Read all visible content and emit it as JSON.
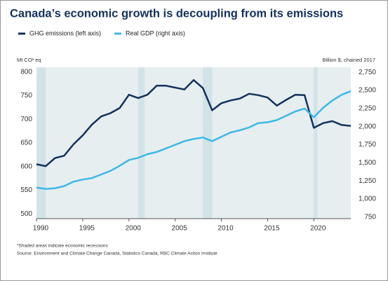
{
  "chart_data": {
    "type": "line",
    "title": "Canada’s economic growth is decoupling from its emissions",
    "y_label": "Mt CO² eq",
    "y2_label": "Billion $, chained 2017",
    "notes": [
      "*Shaded areas indicate economic recessions",
      "Source: Environment and Climate Change Canada, Statistics Canada, RBC Climate Action Institute"
    ],
    "x": [
      1990,
      1991,
      1992,
      1993,
      1994,
      1995,
      1996,
      1997,
      1998,
      1999,
      2000,
      2001,
      2002,
      2003,
      2004,
      2005,
      2006,
      2007,
      2008,
      2009,
      2010,
      2011,
      2012,
      2013,
      2014,
      2015,
      2016,
      2017,
      2018,
      2019,
      2020,
      2021,
      2022,
      2023,
      2024
    ],
    "series": [
      {
        "name": "GHG emissions (left axis)",
        "color": "#13315c",
        "values": [
          605,
          601,
          618,
          623,
          647,
          666,
          689,
          706,
          713,
          724,
          752,
          745,
          752,
          771,
          771,
          767,
          763,
          783,
          766,
          719,
          734,
          740,
          744,
          754,
          751,
          746,
          729,
          741,
          752,
          751,
          682,
          692,
          696,
          688,
          686
        ]
      },
      {
        "name": "Real GDP (right axis)",
        "color": "#3cb8e6",
        "axis": "y2",
        "values": [
          1160,
          1140,
          1150,
          1180,
          1240,
          1270,
          1290,
          1340,
          1390,
          1460,
          1540,
          1570,
          1620,
          1650,
          1700,
          1750,
          1800,
          1830,
          1850,
          1800,
          1860,
          1920,
          1950,
          1990,
          2050,
          2060,
          2090,
          2150,
          2210,
          2250,
          2130,
          2260,
          2360,
          2440,
          2490
        ]
      }
    ],
    "recessions": [
      [
        1990,
        1991
      ],
      [
        2001,
        2001.7
      ],
      [
        2008,
        2009
      ],
      [
        2020,
        2020.4
      ]
    ],
    "xlim": [
      1990,
      2024
    ],
    "xticks": [
      1990,
      1995,
      2000,
      2005,
      2010,
      2015,
      2020
    ],
    "ylim": [
      490,
      810
    ],
    "yticks": [
      500,
      550,
      600,
      650,
      700,
      750,
      800
    ],
    "y2lim": [
      730,
      2820
    ],
    "y2ticks": [
      750,
      {
        "value": 1000,
        "label": "1,000"
      },
      {
        "value": 1250,
        "label": "1,250"
      },
      {
        "value": 1500,
        "label": "1,500"
      },
      {
        "value": 1750,
        "label": "1,750"
      },
      {
        "value": 2000,
        "label": "2,000"
      },
      {
        "value": 2250,
        "label": "2,250"
      },
      {
        "value": 2500,
        "label": "2,500"
      },
      {
        "value": 2750,
        "label": "2,750"
      }
    ]
  }
}
